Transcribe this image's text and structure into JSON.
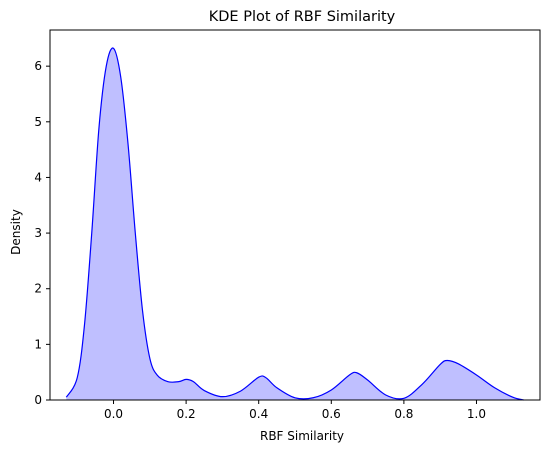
{
  "chart_data": {
    "type": "area",
    "title": "KDE Plot of RBF Similarity",
    "xlabel": "RBF Similarity",
    "ylabel": "Density",
    "xlim": [
      -0.175,
      1.175
    ],
    "ylim": [
      0,
      6.65
    ],
    "x_ticks": [
      0.0,
      0.2,
      0.4,
      0.6,
      0.8,
      1.0
    ],
    "x_tick_labels": [
      "0.0",
      "0.2",
      "0.4",
      "0.6",
      "0.8",
      "1.0"
    ],
    "y_ticks": [
      0,
      1,
      2,
      3,
      4,
      5,
      6
    ],
    "y_tick_labels": [
      "0",
      "1",
      "2",
      "3",
      "4",
      "5",
      "6"
    ],
    "grid": false,
    "series": [
      {
        "line_color": "#0000ff",
        "fill_color": "#bfbfff",
        "x": [
          -0.13,
          -0.1,
          -0.08,
          -0.06,
          -0.04,
          -0.02,
          0.0,
          0.02,
          0.04,
          0.06,
          0.08,
          0.1,
          0.12,
          0.15,
          0.18,
          0.2,
          0.22,
          0.25,
          0.3,
          0.35,
          0.4,
          0.42,
          0.45,
          0.5,
          0.55,
          0.6,
          0.65,
          0.67,
          0.7,
          0.75,
          0.8,
          0.85,
          0.9,
          0.92,
          0.95,
          1.0,
          1.05,
          1.1,
          1.13
        ],
        "y": [
          0.05,
          0.4,
          1.35,
          3.0,
          4.9,
          6.0,
          6.32,
          5.8,
          4.6,
          3.0,
          1.6,
          0.75,
          0.45,
          0.33,
          0.33,
          0.37,
          0.33,
          0.17,
          0.06,
          0.16,
          0.41,
          0.4,
          0.22,
          0.04,
          0.04,
          0.18,
          0.45,
          0.49,
          0.36,
          0.09,
          0.03,
          0.28,
          0.64,
          0.71,
          0.65,
          0.45,
          0.22,
          0.05,
          0.0
        ]
      }
    ]
  }
}
